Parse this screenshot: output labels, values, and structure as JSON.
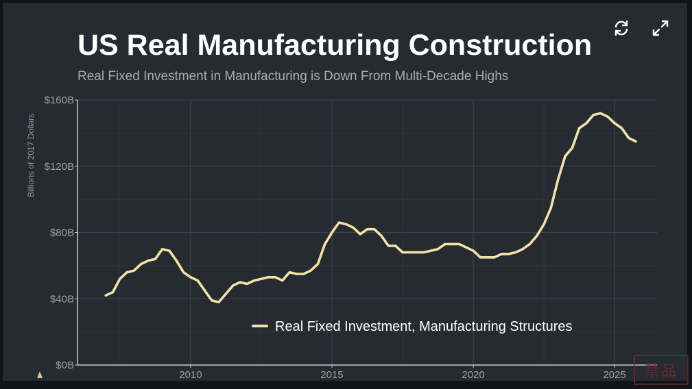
{
  "controls": {
    "refresh_icon": "refresh-icon",
    "expand_icon": "expand-icon"
  },
  "watermark": {
    "text": "禁品"
  },
  "colors": {
    "background": "#262b31",
    "line": "#f3e3a6",
    "grid": "#3b4148",
    "axis": "#c9ccd0"
  },
  "chart_data": {
    "type": "line",
    "title": "US Real Manufacturing Construction",
    "subtitle": "Real Fixed Investment in Manufacturing is Down From Multi-Decade Highs",
    "xlabel": "",
    "ylabel": "Billions of 2017 Dollars",
    "xlim": [
      2006,
      2026.5
    ],
    "ylim": [
      0,
      160
    ],
    "xticks": [
      2010,
      2015,
      2020,
      2025
    ],
    "xtick_labels": [
      "2010",
      "2015",
      "2020",
      "2025"
    ],
    "yticks": [
      0,
      40,
      80,
      120,
      160
    ],
    "ytick_labels": [
      "$0B",
      "$40B",
      "$80B",
      "$120B",
      "$160B"
    ],
    "grid": true,
    "legend_position": "bottom-center",
    "series": [
      {
        "name": "Real Fixed Investment, Manufacturing Structures",
        "x": [
          2007.0,
          2007.25,
          2007.5,
          2007.75,
          2008.0,
          2008.25,
          2008.5,
          2008.75,
          2009.0,
          2009.25,
          2009.5,
          2009.75,
          2010.0,
          2010.25,
          2010.5,
          2010.75,
          2011.0,
          2011.25,
          2011.5,
          2011.75,
          2012.0,
          2012.25,
          2012.5,
          2012.75,
          2013.0,
          2013.25,
          2013.5,
          2013.75,
          2014.0,
          2014.25,
          2014.5,
          2014.75,
          2015.0,
          2015.25,
          2015.5,
          2015.75,
          2016.0,
          2016.25,
          2016.5,
          2016.75,
          2017.0,
          2017.25,
          2017.5,
          2017.75,
          2018.0,
          2018.25,
          2018.5,
          2018.75,
          2019.0,
          2019.25,
          2019.5,
          2019.75,
          2020.0,
          2020.25,
          2020.5,
          2020.75,
          2021.0,
          2021.25,
          2021.5,
          2021.75,
          2022.0,
          2022.25,
          2022.5,
          2022.75,
          2023.0,
          2023.25,
          2023.5,
          2023.75,
          2024.0,
          2024.25,
          2024.5,
          2024.75,
          2025.0,
          2025.25,
          2025.5,
          2025.75
        ],
        "values": [
          42,
          44,
          52,
          56,
          57,
          61,
          63,
          64,
          70,
          69,
          63,
          56,
          53,
          51,
          45,
          39,
          38,
          43,
          48,
          50,
          49,
          51,
          52,
          53,
          53,
          51,
          56,
          55,
          55,
          57,
          61,
          73,
          80,
          86,
          85,
          83,
          79,
          82,
          82,
          78,
          72,
          72,
          68,
          68,
          68,
          68,
          69,
          70,
          73,
          73,
          73,
          71,
          69,
          65,
          65,
          65,
          67,
          67,
          68,
          70,
          73,
          78,
          85,
          95,
          112,
          126,
          131,
          143,
          146,
          151,
          152,
          150,
          146,
          143,
          137,
          135
        ]
      }
    ]
  }
}
